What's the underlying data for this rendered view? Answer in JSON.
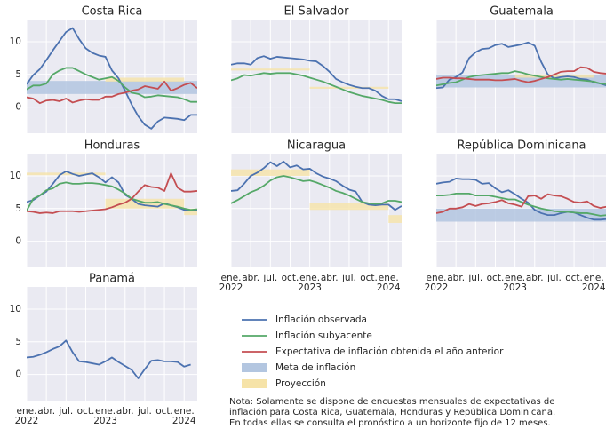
{
  "chart_data": {
    "type": "line",
    "x": [
      "2022-01",
      "2022-02",
      "2022-03",
      "2022-04",
      "2022-05",
      "2022-06",
      "2022-07",
      "2022-08",
      "2022-09",
      "2022-10",
      "2022-11",
      "2022-12",
      "2023-01",
      "2023-02",
      "2023-03",
      "2023-04",
      "2023-05",
      "2023-06",
      "2023-07",
      "2023-08",
      "2023-09",
      "2023-10",
      "2023-11",
      "2023-12",
      "2024-01",
      "2024-02",
      "2024-03"
    ],
    "xlim": [
      "2022-01",
      "2024-03"
    ],
    "xticks": [
      {
        "value": "2022-01",
        "label": "ene. 2022"
      },
      {
        "value": "2022-04",
        "label": "abr."
      },
      {
        "value": "2022-07",
        "label": "jul."
      },
      {
        "value": "2022-10",
        "label": "oct."
      },
      {
        "value": "2023-01",
        "label": "ene. 2023"
      },
      {
        "value": "2023-04",
        "label": "abr."
      },
      {
        "value": "2023-07",
        "label": "jul."
      },
      {
        "value": "2023-10",
        "label": "oct."
      },
      {
        "value": "2024-01",
        "label": "ene. 2024"
      }
    ],
    "ylim": [
      -4,
      13.4
    ],
    "yticks": [
      0,
      5,
      10
    ],
    "grid": true,
    "series": [
      {
        "name": "Inflación observada",
        "color": "#4c72b0"
      },
      {
        "name": "Inflación subyacente",
        "color": "#55a868"
      },
      {
        "name": "Expectativa de inflación obtenida el año anterior",
        "color": "#c44e52"
      }
    ],
    "target": {
      "name": "Meta de inflación",
      "color": "#b3c6e0"
    },
    "projection": {
      "name": "Proyección",
      "color": "#f6e3a8"
    },
    "panels": [
      {
        "title": "Costa Rica",
        "lines": [
          [
            3.5,
            4.9,
            5.8,
            7.2,
            8.7,
            10.1,
            11.5,
            12.1,
            10.4,
            9.0,
            8.3,
            7.9,
            7.7,
            5.6,
            4.4,
            2.5,
            0.4,
            -1.4,
            -2.7,
            -3.3,
            -2.2,
            -1.6,
            -1.7,
            -1.8,
            -2.0,
            -1.2,
            -1.2
          ],
          [
            2.7,
            3.3,
            3.3,
            3.6,
            5.0,
            5.6,
            6.0,
            6.0,
            5.5,
            5.0,
            4.6,
            4.2,
            4.4,
            4.6,
            4.0,
            3.0,
            2.2,
            2.0,
            1.5,
            1.6,
            1.8,
            1.7,
            1.6,
            1.5,
            1.2,
            0.8,
            0.8
          ],
          [
            1.5,
            1.3,
            0.6,
            1.0,
            1.1,
            0.9,
            1.3,
            0.7,
            1.0,
            1.2,
            1.1,
            1.1,
            1.6,
            1.6,
            2.0,
            2.2,
            2.5,
            2.7,
            3.2,
            3.0,
            2.8,
            3.9,
            2.5,
            2.9,
            3.4,
            3.7,
            2.9
          ]
        ],
        "target": [
          2,
          4
        ],
        "projections": [
          {
            "start": "2023-01",
            "end": "2024-01",
            "low": 3.9,
            "high": 4.5
          }
        ]
      },
      {
        "title": "El Salvador",
        "lines": [
          [
            6.5,
            6.7,
            6.7,
            6.5,
            7.5,
            7.8,
            7.4,
            7.7,
            7.6,
            7.5,
            7.4,
            7.3,
            7.1,
            7.0,
            6.3,
            5.4,
            4.3,
            3.8,
            3.4,
            3.1,
            2.9,
            2.9,
            2.5,
            1.7,
            1.2,
            1.2,
            0.9
          ],
          [
            4.1,
            4.4,
            4.9,
            4.8,
            5.0,
            5.2,
            5.1,
            5.2,
            5.2,
            5.2,
            5.0,
            4.8,
            4.5,
            4.2,
            3.9,
            3.5,
            3.1,
            2.7,
            2.3,
            2.0,
            1.7,
            1.5,
            1.3,
            1.1,
            0.8,
            0.6,
            0.6
          ],
          null
        ],
        "projections": [
          {
            "start": "2022-01",
            "end": "2023-01",
            "low": 5.6,
            "high": 5.9
          },
          {
            "start": "2023-01",
            "end": "2024-01",
            "low": 2.8,
            "high": 3.1
          }
        ]
      },
      {
        "title": "Guatemala",
        "lines": [
          [
            2.9,
            3.0,
            4.2,
            4.6,
            5.3,
            7.5,
            8.4,
            8.9,
            9.0,
            9.5,
            9.7,
            9.2,
            9.4,
            9.6,
            9.9,
            9.4,
            6.9,
            5.0,
            4.4,
            4.6,
            4.7,
            4.6,
            4.3,
            4.2,
            3.8,
            3.6,
            3.3
          ],
          [
            3.3,
            3.5,
            3.7,
            3.8,
            4.2,
            4.6,
            4.8,
            4.9,
            5.0,
            5.1,
            5.2,
            5.2,
            5.5,
            5.3,
            5.0,
            4.8,
            4.6,
            4.4,
            4.3,
            4.2,
            4.3,
            4.2,
            4.1,
            4.0,
            3.9,
            3.6,
            3.5
          ],
          [
            4.3,
            4.5,
            4.5,
            4.4,
            4.4,
            4.3,
            4.2,
            4.2,
            4.2,
            4.1,
            4.1,
            4.2,
            4.3,
            4.0,
            3.8,
            4.0,
            4.3,
            4.6,
            5.0,
            5.4,
            5.5,
            5.5,
            6.1,
            6.0,
            5.4,
            5.2,
            5.1
          ]
        ],
        "target": [
          3,
          5
        ],
        "projections": [
          {
            "start": "2023-01",
            "end": "2024-01",
            "low": 4.5,
            "high": 5.0
          }
        ]
      },
      {
        "title": "Honduras",
        "lines": [
          [
            6.0,
            6.3,
            7.0,
            7.6,
            8.8,
            10.1,
            10.7,
            10.3,
            10.0,
            10.2,
            10.4,
            9.8,
            9.0,
            9.8,
            9.0,
            7.1,
            6.5,
            5.7,
            5.5,
            5.4,
            5.3,
            5.8,
            5.5,
            5.2,
            4.8,
            4.7,
            4.8
          ],
          [
            4.7,
            6.5,
            7.0,
            7.8,
            8.1,
            8.8,
            9.0,
            8.8,
            8.8,
            8.9,
            8.9,
            8.8,
            8.6,
            8.4,
            7.9,
            7.3,
            6.5,
            6.2,
            5.9,
            5.9,
            6.0,
            5.7,
            5.5,
            5.3,
            5.0,
            4.8,
            4.9
          ],
          [
            4.6,
            4.5,
            4.3,
            4.4,
            4.3,
            4.6,
            4.6,
            4.6,
            4.5,
            4.6,
            4.7,
            4.8,
            4.9,
            5.2,
            5.6,
            5.9,
            6.5,
            7.6,
            8.6,
            8.3,
            8.2,
            7.7,
            10.4,
            8.2,
            7.6,
            7.6,
            7.7
          ]
        ],
        "projections": [
          {
            "start": "2022-01",
            "end": "2023-01",
            "low": 10.1,
            "high": 10.5
          },
          {
            "start": "2023-01",
            "end": "2024-01",
            "low": 5.0,
            "high": 6.5
          },
          {
            "start": "2024-01",
            "end": "2024-03",
            "low": 4.0,
            "high": 5.0
          }
        ]
      },
      {
        "title": "Nicaragua",
        "lines": [
          [
            7.7,
            7.8,
            8.8,
            10.0,
            10.5,
            11.2,
            12.1,
            11.5,
            12.2,
            11.3,
            11.6,
            11.0,
            11.1,
            10.4,
            9.9,
            9.6,
            9.2,
            8.5,
            7.9,
            7.6,
            6.0,
            5.6,
            5.5,
            5.6,
            5.6,
            4.8,
            5.4
          ],
          [
            5.8,
            6.3,
            6.9,
            7.5,
            7.9,
            8.5,
            9.3,
            9.8,
            10.0,
            9.8,
            9.5,
            9.2,
            9.3,
            9.0,
            8.6,
            8.2,
            7.7,
            7.4,
            7.0,
            6.5,
            6.0,
            5.8,
            5.7,
            5.8,
            6.2,
            6.2,
            6.0
          ],
          null
        ],
        "projections": [
          {
            "start": "2022-01",
            "end": "2023-01",
            "low": 10.0,
            "high": 11.0
          },
          {
            "start": "2023-01",
            "end": "2024-01",
            "low": 4.8,
            "high": 5.8
          },
          {
            "start": "2024-01",
            "end": "2024-03",
            "low": 2.8,
            "high": 4.0
          }
        ]
      },
      {
        "title": "República Dominicana",
        "lines": [
          [
            8.8,
            9.0,
            9.1,
            9.6,
            9.5,
            9.5,
            9.4,
            8.8,
            8.9,
            8.1,
            7.5,
            7.8,
            7.2,
            6.5,
            5.9,
            4.8,
            4.3,
            4.0,
            4.0,
            4.3,
            4.5,
            4.4,
            4.0,
            3.6,
            3.3,
            3.3,
            3.4
          ],
          [
            7.0,
            7.0,
            7.1,
            7.3,
            7.3,
            7.3,
            7.0,
            7.0,
            7.0,
            6.8,
            6.6,
            6.4,
            6.4,
            6.0,
            5.6,
            5.3,
            5.0,
            4.8,
            4.6,
            4.5,
            4.5,
            4.4,
            4.3,
            4.3,
            4.1,
            3.9,
            4.0
          ],
          [
            4.3,
            4.5,
            5.0,
            5.0,
            5.2,
            5.7,
            5.4,
            5.7,
            5.8,
            6.0,
            6.3,
            5.8,
            5.6,
            5.3,
            6.9,
            7.0,
            6.5,
            7.2,
            7.0,
            6.9,
            6.5,
            6.0,
            5.9,
            6.1,
            5.4,
            5.1,
            5.3
          ]
        ],
        "target": [
          3,
          5
        ]
      },
      {
        "title": "Panamá",
        "lines": [
          [
            2.6,
            2.7,
            3.0,
            3.4,
            3.9,
            4.3,
            5.2,
            3.4,
            2.0,
            1.9,
            1.7,
            1.5,
            2.0,
            2.6,
            1.9,
            1.3,
            0.7,
            -0.6,
            0.8,
            2.1,
            2.2,
            2.0,
            2.0,
            1.9,
            1.2,
            1.5,
            null
          ],
          null,
          null
        ]
      }
    ],
    "note": [
      "Nota: Solamente se dispone de encuestas mensuales de expectativas de",
      "inflación para Costa Rica, Guatemala, Honduras y República Dominicana.",
      "En todas ellas se consulta el pronóstico a un horizonte fijo de 12 meses."
    ]
  }
}
